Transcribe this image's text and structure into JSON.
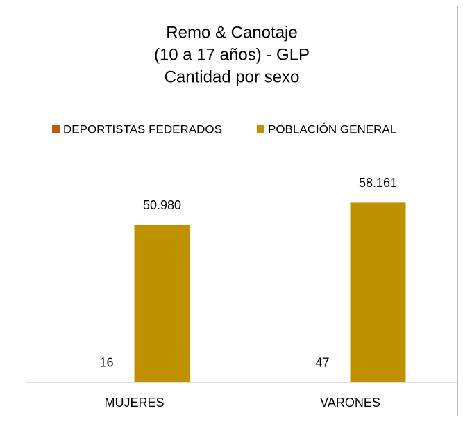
{
  "chart_data": {
    "type": "bar",
    "title": [
      "Remo & Canotaje",
      "(10 a 17 años) - GLP",
      "Cantidad por sexo"
    ],
    "categories": [
      "MUJERES",
      "VARONES"
    ],
    "series": [
      {
        "name": "DEPORTISTAS FEDERADOS",
        "color": "#c55a11",
        "values": [
          16,
          47
        ]
      },
      {
        "name": "POBLACIÓN GENERAL",
        "color": "#bf9000",
        "values": [
          50980,
          58161
        ],
        "value_labels": [
          "50.980",
          "58.161"
        ]
      }
    ],
    "ylim": [
      0,
      65000
    ],
    "legend": "top"
  }
}
